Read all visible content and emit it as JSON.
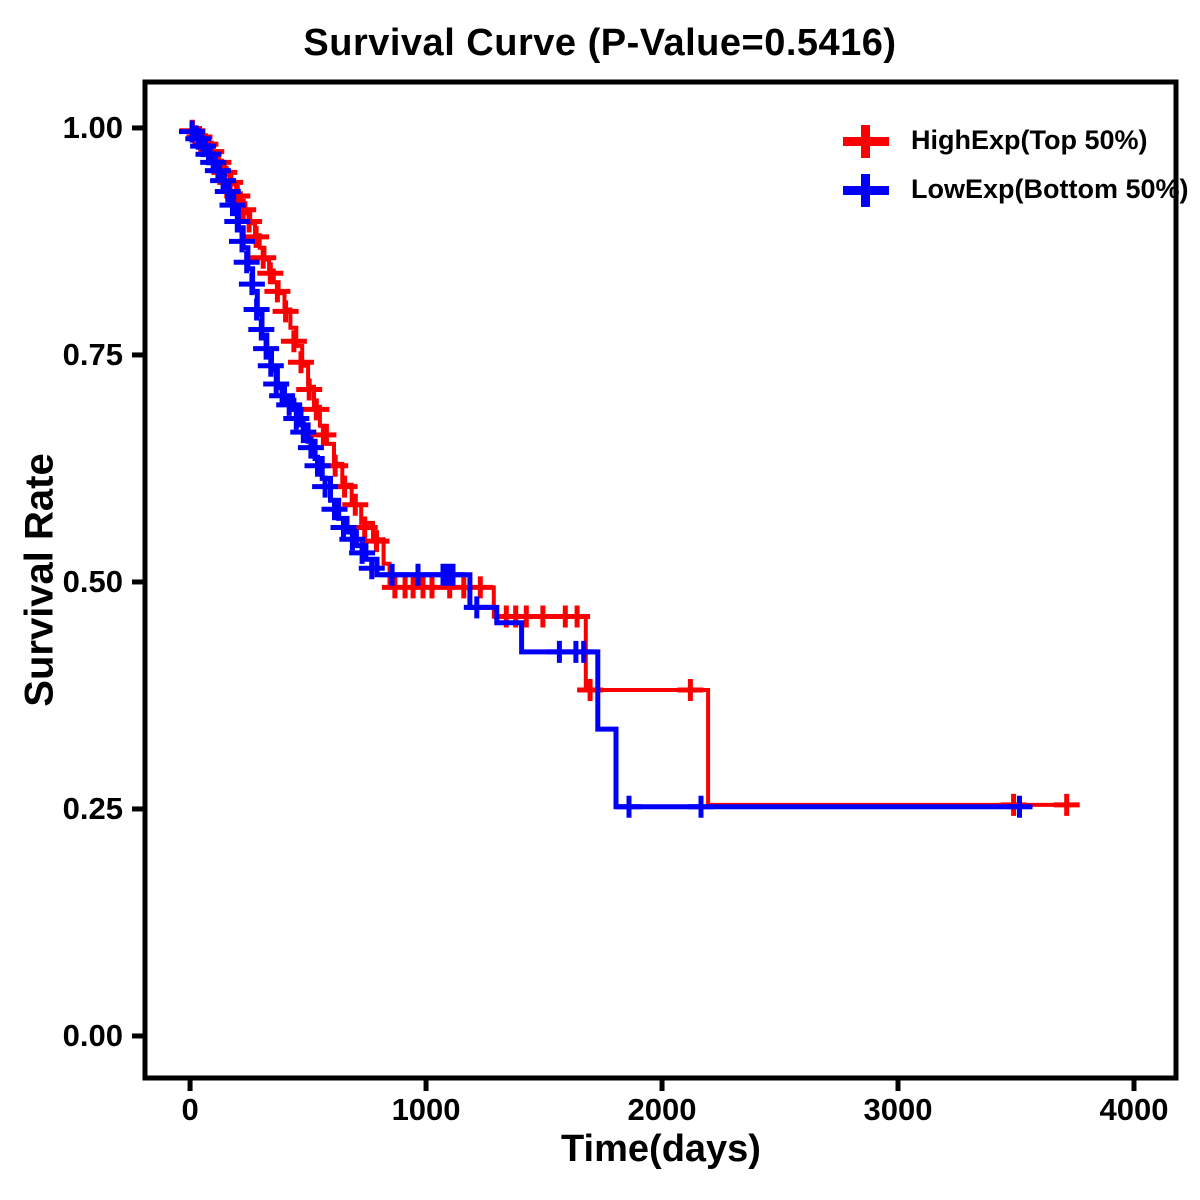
{
  "title": "Survival Curve (P-Value=0.5416)",
  "chart_data": {
    "type": "line",
    "subtype": "kaplan-meier-step",
    "title": "Survival Curve (P-Value=0.5416)",
    "p_value": "0.5416",
    "xlabel": "Time(days)",
    "ylabel": "Survival Rate",
    "xlim": [
      -191,
      4178
    ],
    "ylim": [
      -0.0463,
      1.0506
    ],
    "xticks": [
      0,
      1000,
      2000,
      3000,
      4000
    ],
    "yticks": [
      0.0,
      0.25,
      0.5,
      0.75,
      1.0
    ],
    "ytick_labels": [
      "0.00",
      "0.25",
      "0.50",
      "0.75",
      "1.00"
    ],
    "grid": false,
    "legend_position": "top-right-inside",
    "legend": [
      {
        "name": "HighExp(Top 50%)",
        "color": "#fa0000"
      },
      {
        "name": "LowExp(Bottom 50%)",
        "color": "#0000fa"
      }
    ],
    "series": [
      {
        "name": "HighExp(Top 50%)",
        "color": "#fa0000",
        "line_width": 4,
        "end_time": 3730,
        "steps": [
          [
            0,
            1.0
          ],
          [
            30,
            0.993
          ],
          [
            55,
            0.986
          ],
          [
            75,
            0.979
          ],
          [
            95,
            0.972
          ],
          [
            115,
            0.964
          ],
          [
            135,
            0.956
          ],
          [
            155,
            0.948
          ],
          [
            175,
            0.938
          ],
          [
            195,
            0.928
          ],
          [
            215,
            0.917
          ],
          [
            235,
            0.906
          ],
          [
            255,
            0.895
          ],
          [
            275,
            0.882
          ],
          [
            295,
            0.868
          ],
          [
            315,
            0.855
          ],
          [
            335,
            0.843
          ],
          [
            355,
            0.83
          ],
          [
            375,
            0.818
          ],
          [
            400,
            0.8
          ],
          [
            425,
            0.78
          ],
          [
            450,
            0.76
          ],
          [
            475,
            0.738
          ],
          [
            500,
            0.715
          ],
          [
            525,
            0.693
          ],
          [
            550,
            0.672
          ],
          [
            580,
            0.652
          ],
          [
            610,
            0.63
          ],
          [
            645,
            0.607
          ],
          [
            685,
            0.585
          ],
          [
            725,
            0.565
          ],
          [
            775,
            0.547
          ],
          [
            820,
            0.52
          ],
          [
            845,
            0.494
          ],
          [
            1287,
            0.462
          ],
          [
            1677,
            0.381
          ],
          [
            2195,
            0.2545
          ]
        ],
        "censors": [
          [
            10,
            0.997
          ],
          [
            40,
            0.99
          ],
          [
            65,
            0.982
          ],
          [
            90,
            0.974
          ],
          [
            120,
            0.962
          ],
          [
            145,
            0.951
          ],
          [
            170,
            0.94
          ],
          [
            200,
            0.925
          ],
          [
            225,
            0.91
          ],
          [
            250,
            0.897
          ],
          [
            280,
            0.88
          ],
          [
            310,
            0.857
          ],
          [
            340,
            0.84
          ],
          [
            370,
            0.82
          ],
          [
            405,
            0.798
          ],
          [
            440,
            0.765
          ],
          [
            470,
            0.742
          ],
          [
            505,
            0.712
          ],
          [
            535,
            0.69
          ],
          [
            565,
            0.662
          ],
          [
            615,
            0.628
          ],
          [
            655,
            0.605
          ],
          [
            700,
            0.585
          ],
          [
            740,
            0.56
          ],
          [
            790,
            0.545
          ],
          [
            868,
            0.494
          ],
          [
            911,
            0.494
          ],
          [
            945,
            0.494
          ],
          [
            987,
            0.494
          ],
          [
            1025,
            0.494
          ],
          [
            1100,
            0.494
          ],
          [
            1160,
            0.494
          ],
          [
            1230,
            0.494
          ],
          [
            1340,
            0.462
          ],
          [
            1380,
            0.462
          ],
          [
            1425,
            0.462
          ],
          [
            1495,
            0.462
          ],
          [
            1590,
            0.462
          ],
          [
            1640,
            0.462
          ],
          [
            1695,
            0.381
          ],
          [
            2120,
            0.381
          ],
          [
            3490,
            0.2545
          ],
          [
            3715,
            0.2545
          ]
        ]
      },
      {
        "name": "LowExp(Bottom 50%)",
        "color": "#0000fa",
        "line_width": 5,
        "end_time": 3520,
        "steps": [
          [
            0,
            1.0
          ],
          [
            25,
            0.992
          ],
          [
            45,
            0.984
          ],
          [
            65,
            0.976
          ],
          [
            85,
            0.967
          ],
          [
            105,
            0.958
          ],
          [
            125,
            0.948
          ],
          [
            145,
            0.937
          ],
          [
            165,
            0.925
          ],
          [
            185,
            0.91
          ],
          [
            205,
            0.89
          ],
          [
            225,
            0.868
          ],
          [
            245,
            0.845
          ],
          [
            265,
            0.82
          ],
          [
            285,
            0.795
          ],
          [
            305,
            0.772
          ],
          [
            325,
            0.752
          ],
          [
            345,
            0.733
          ],
          [
            370,
            0.714
          ],
          [
            400,
            0.7
          ],
          [
            440,
            0.69
          ],
          [
            470,
            0.673
          ],
          [
            500,
            0.655
          ],
          [
            530,
            0.636
          ],
          [
            560,
            0.614
          ],
          [
            595,
            0.59
          ],
          [
            630,
            0.57
          ],
          [
            665,
            0.555
          ],
          [
            705,
            0.54
          ],
          [
            745,
            0.525
          ],
          [
            792,
            0.508
          ],
          [
            1186,
            0.472
          ],
          [
            1300,
            0.455
          ],
          [
            1405,
            0.423
          ],
          [
            1728,
            0.338
          ],
          [
            1805,
            0.2525
          ]
        ],
        "censors": [
          [
            8,
            0.996
          ],
          [
            35,
            0.988
          ],
          [
            55,
            0.98
          ],
          [
            78,
            0.971
          ],
          [
            98,
            0.962
          ],
          [
            118,
            0.953
          ],
          [
            140,
            0.942
          ],
          [
            160,
            0.93
          ],
          [
            180,
            0.915
          ],
          [
            200,
            0.897
          ],
          [
            220,
            0.875
          ],
          [
            240,
            0.852
          ],
          [
            262,
            0.828
          ],
          [
            282,
            0.8
          ],
          [
            302,
            0.778
          ],
          [
            322,
            0.757
          ],
          [
            342,
            0.738
          ],
          [
            365,
            0.718
          ],
          [
            390,
            0.705
          ],
          [
            420,
            0.695
          ],
          [
            450,
            0.68
          ],
          [
            480,
            0.665
          ],
          [
            512,
            0.648
          ],
          [
            540,
            0.628
          ],
          [
            572,
            0.605
          ],
          [
            612,
            0.58
          ],
          [
            650,
            0.56
          ],
          [
            688,
            0.547
          ],
          [
            729,
            0.532
          ],
          [
            770,
            0.515
          ],
          [
            856,
            0.508
          ],
          [
            966,
            0.508
          ],
          [
            1072,
            0.508
          ],
          [
            1093,
            0.508
          ],
          [
            1114,
            0.508
          ],
          [
            1215,
            0.472
          ],
          [
            1565,
            0.423
          ],
          [
            1635,
            0.423
          ],
          [
            1668,
            0.423
          ],
          [
            1860,
            0.2525
          ],
          [
            2165,
            0.2525
          ],
          [
            3515,
            0.2525
          ]
        ]
      }
    ]
  }
}
